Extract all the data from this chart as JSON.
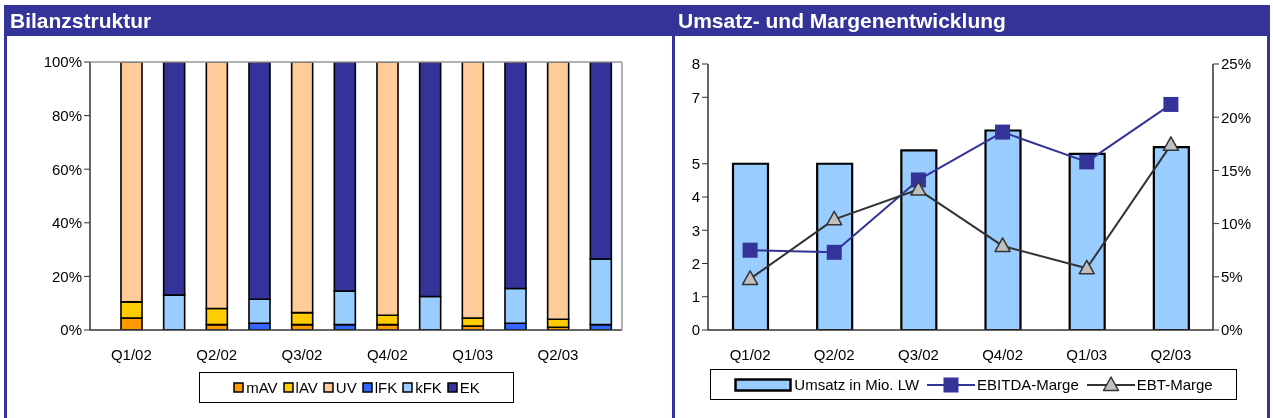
{
  "chart_data": [
    {
      "type": "bar",
      "title": "Bilanzstruktur",
      "categories": [
        "Q1/02",
        null,
        "Q2/02",
        null,
        "Q3/02",
        null,
        "Q4/02",
        null,
        "Q1/03",
        null,
        "Q2/03",
        null
      ],
      "stacked": true,
      "series": [
        {
          "name": "mAV",
          "color": "#ff9900",
          "values": [
            4.5,
            null,
            2,
            null,
            2,
            null,
            2,
            null,
            1.5,
            null,
            1,
            null
          ]
        },
        {
          "name": "lAV",
          "color": "#ffcc00",
          "values": [
            6,
            null,
            6,
            null,
            4.5,
            null,
            3.5,
            null,
            3,
            null,
            3,
            null
          ]
        },
        {
          "name": "UV",
          "color": "#ffcc99",
          "values": [
            89.5,
            null,
            92,
            null,
            93.5,
            null,
            94.5,
            null,
            95.5,
            null,
            96,
            null
          ]
        },
        {
          "name": "lFK",
          "color": "#3366ff",
          "values": [
            null,
            0,
            null,
            2.5,
            null,
            2,
            null,
            0,
            null,
            2.5,
            null,
            2
          ]
        },
        {
          "name": "kFK",
          "color": "#99ccff",
          "values": [
            null,
            13,
            null,
            9,
            null,
            12.5,
            null,
            12.5,
            null,
            13,
            null,
            24.5
          ]
        },
        {
          "name": "EK",
          "color": "#333399",
          "values": [
            null,
            87,
            null,
            88.5,
            null,
            85.5,
            null,
            87.5,
            null,
            84.5,
            null,
            73.5
          ]
        }
      ],
      "ylim": [
        0,
        100
      ],
      "yticks": [
        {
          "value": 0,
          "label": "0%"
        },
        {
          "value": 20,
          "label": "20%"
        },
        {
          "value": 40,
          "label": "40%"
        },
        {
          "value": 60,
          "label": "60%"
        },
        {
          "value": 80,
          "label": "80%"
        },
        {
          "value": 100,
          "label": "100%"
        }
      ],
      "legend": "bottom"
    },
    {
      "type": "bar",
      "title": "Umsatz- und Margenentwicklung",
      "categories": [
        "Q1/02",
        "Q2/02",
        "Q3/02",
        "Q4/02",
        "Q1/03",
        "Q2/03"
      ],
      "series": [
        {
          "name": "Umsatz in Mio. LW",
          "type": "bar",
          "color": "#99ccff",
          "values": [
            5,
            5,
            5.4,
            6,
            5.3,
            5.5
          ]
        },
        {
          "name": "EBITDA-Marge",
          "type": "line",
          "axis": "y2",
          "color": "#333399",
          "marker": "square",
          "values": [
            7.5,
            7.3,
            14.1,
            18.6,
            15.8,
            21.2
          ]
        },
        {
          "name": "EBT-Marge",
          "type": "line",
          "axis": "y2",
          "color": "#333333",
          "marker": "triangle",
          "values": [
            4.8,
            10.4,
            13.2,
            7.9,
            5.8,
            17.4
          ]
        }
      ],
      "ylim": [
        0,
        8
      ],
      "yticks": [
        0,
        1,
        2,
        3,
        4,
        5,
        7,
        8
      ],
      "y2lim": [
        0,
        25
      ],
      "y2ticks": [
        {
          "value": 0,
          "label": "0%"
        },
        {
          "value": 5,
          "label": "5%"
        },
        {
          "value": 10,
          "label": "10%"
        },
        {
          "value": 15,
          "label": "15%"
        },
        {
          "value": 20,
          "label": "20%"
        },
        {
          "value": 25,
          "label": "25%"
        }
      ],
      "legend": "bottom"
    }
  ]
}
